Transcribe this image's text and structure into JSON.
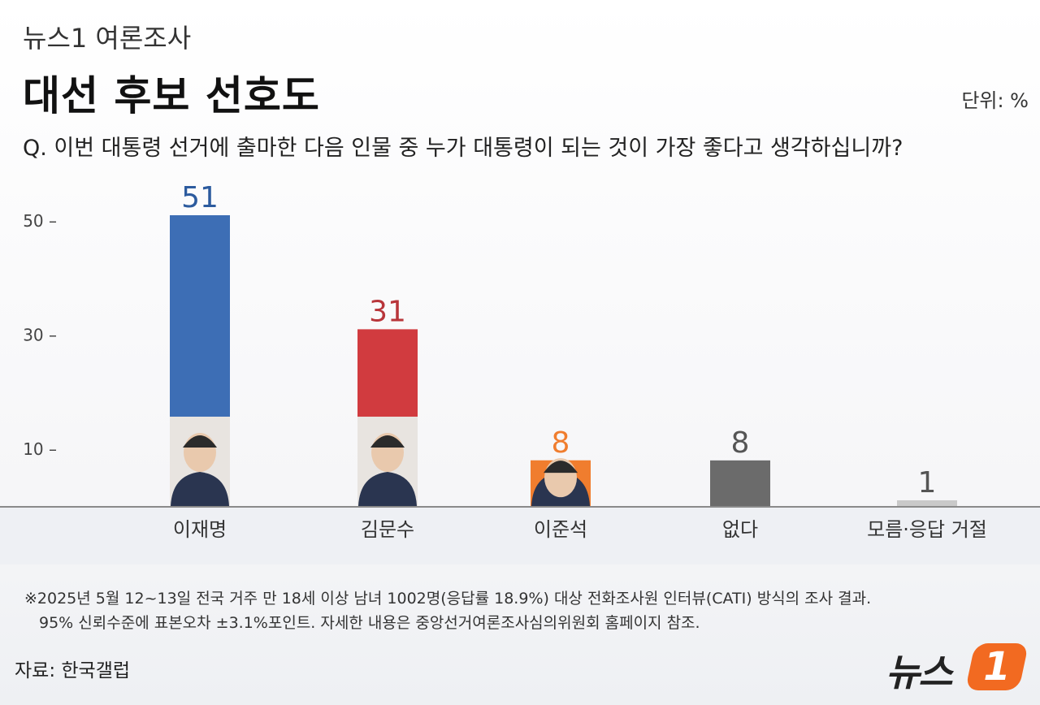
{
  "header": {
    "kicker": "뉴스1 여론조사",
    "title": "대선 후보 선호도",
    "unit": "단위: %",
    "question": "Q. 이번 대통령 선거에 출마한 다음 인물 중 누가 대통령이 되는 것이 가장 좋다고 생각하십니까?"
  },
  "chart_data": {
    "type": "bar",
    "categories": [
      "이재명",
      "김문수",
      "이준석",
      "없다",
      "모름·응답 거절"
    ],
    "values": [
      51,
      31,
      8,
      8,
      1
    ],
    "colors": [
      "#3d6eb5",
      "#d13b3f",
      "#f07d2e",
      "#6b6b6b",
      "#c9c9c9"
    ],
    "label_colors": [
      "#2c5b9e",
      "#b8353a",
      "#f07d2e",
      "#555555",
      "#555555"
    ],
    "photos": [
      true,
      true,
      true,
      false,
      false
    ],
    "yticks": [
      50,
      30,
      10
    ],
    "ytick_labels": [
      "50 –",
      "30 –",
      "10 –"
    ],
    "ylim": [
      0,
      55
    ],
    "title": "대선 후보 선호도",
    "xlabel": "",
    "ylabel": ""
  },
  "footnote": {
    "line1": "※2025년 5월 12~13일 전국 거주 만 18세 이상 남녀 1002명(응답률 18.9%) 대상 전화조사원 인터뷰(CATI) 방식의 조사 결과.",
    "line2": "95% 신뢰수준에 표본오차 ±3.1%포인트. 자세한 내용은 중앙선거여론조사심의위원회 홈페이지 참조."
  },
  "source": "자료: 한국갤럽",
  "logo": {
    "text": "뉴스",
    "mark": "1",
    "mark_color": "#f26a21"
  }
}
